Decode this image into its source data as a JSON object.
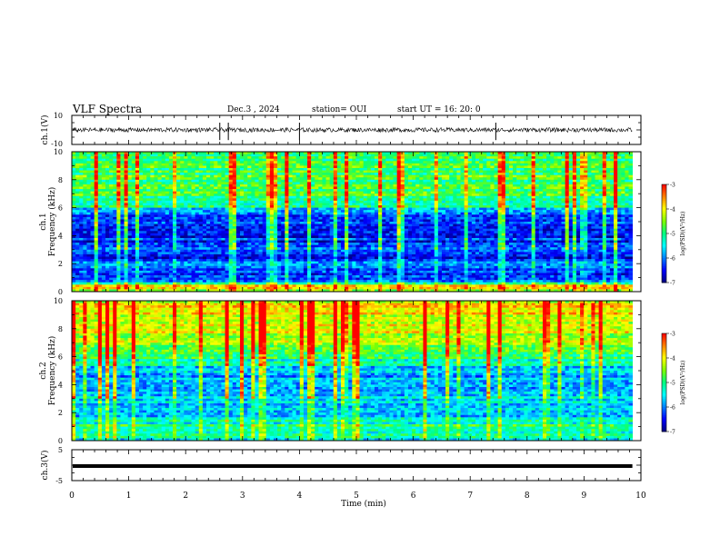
{
  "header": {
    "title": "VLF Spectra",
    "date": "Dec.3 , 2024",
    "station": "station= OUI",
    "start": "start UT = 16: 20: 0"
  },
  "chart_data": [
    {
      "type": "line",
      "name_label": "ch.1(V)",
      "ylabel": "ch.1(V)",
      "ylim": [
        -10,
        10
      ],
      "yticks": [
        "10",
        "-10"
      ],
      "xlim": [
        0,
        10
      ],
      "trace_level": 0,
      "trace_noise_amplitude": 1.5,
      "spike_times": [
        2.6,
        2.75,
        4.0,
        7.45
      ]
    },
    {
      "type": "heatmap",
      "ylabel": "ch.1 Frequency (kHz)",
      "ylim": [
        0,
        10
      ],
      "yticks": [
        "0",
        "2",
        "4",
        "6",
        "8",
        "10"
      ],
      "xlim": [
        0,
        10
      ],
      "data_end": 9.85,
      "colorbar": {
        "label": "log(PSD)(V²/Hz)",
        "range": [
          -7,
          -3
        ],
        "ticks": [
          "-3",
          "-4",
          "-5",
          "-6",
          "-7"
        ]
      },
      "levels": [
        {
          "f": 0.0,
          "v": -5.0
        },
        {
          "f": 0.3,
          "v": -3.5
        },
        {
          "f": 0.8,
          "v": -6.2
        },
        {
          "f": 1.2,
          "v": -6.5
        },
        {
          "f": 2.0,
          "v": -6.0
        },
        {
          "f": 2.5,
          "v": -6.6
        },
        {
          "f": 3.0,
          "v": -5.8
        },
        {
          "f": 3.5,
          "v": -6.3
        },
        {
          "f": 4.0,
          "v": -6.5
        },
        {
          "f": 5.0,
          "v": -6.4
        },
        {
          "f": 5.8,
          "v": -6.0
        },
        {
          "f": 6.1,
          "v": -5.0
        },
        {
          "f": 7.0,
          "v": -4.9
        },
        {
          "f": 8.0,
          "v": -4.8
        },
        {
          "f": 10.0,
          "v": -4.9
        }
      ]
    },
    {
      "type": "heatmap",
      "ylabel": "ch.2 Frequency (kHz)",
      "ylim": [
        0,
        10
      ],
      "yticks": [
        "0",
        "2",
        "4",
        "6",
        "8",
        "10"
      ],
      "xlim": [
        0,
        10
      ],
      "data_end": 9.85,
      "colorbar": {
        "label": "log(PSD)(V²/Hz)",
        "range": [
          -7,
          -3
        ],
        "ticks": [
          "-3",
          "-4",
          "-5",
          "-6",
          "-7"
        ]
      },
      "levels": [
        {
          "f": 0.0,
          "v": -5.5
        },
        {
          "f": 1.0,
          "v": -5.0
        },
        {
          "f": 2.0,
          "v": -5.8
        },
        {
          "f": 3.0,
          "v": -5.6
        },
        {
          "f": 4.0,
          "v": -5.9
        },
        {
          "f": 5.0,
          "v": -5.7
        },
        {
          "f": 6.0,
          "v": -5.0
        },
        {
          "f": 7.0,
          "v": -4.3
        },
        {
          "f": 8.0,
          "v": -4.1
        },
        {
          "f": 9.0,
          "v": -4.0
        },
        {
          "f": 10.0,
          "v": -4.1
        }
      ]
    },
    {
      "type": "line",
      "ylabel": "ch.3(V)",
      "ylim": [
        -5,
        5
      ],
      "yticks": [
        "5",
        "-5"
      ],
      "xlim": [
        0,
        10
      ],
      "trace_level": -0.3
    }
  ],
  "xaxis": {
    "label": "Time (min)",
    "ticks": [
      "0",
      "1",
      "2",
      "3",
      "4",
      "5",
      "6",
      "7",
      "8",
      "9",
      "10"
    ]
  },
  "colors": {
    "colormap": [
      "#000080",
      "#0000ff",
      "#0080ff",
      "#00ffff",
      "#00ff80",
      "#80ff00",
      "#ffff00",
      "#ff8000",
      "#ff0000"
    ]
  }
}
